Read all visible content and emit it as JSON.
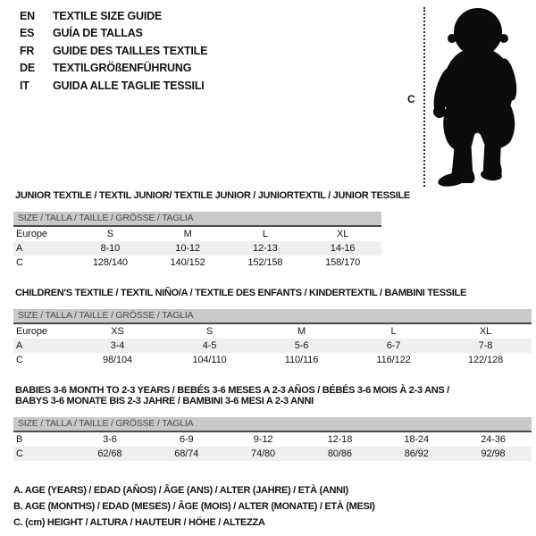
{
  "header": {
    "languages": [
      {
        "code": "EN",
        "title": "TEXTILE SIZE GUIDE"
      },
      {
        "code": "ES",
        "title": "GUÍA DE TALLAS"
      },
      {
        "code": "FR",
        "title": "GUIDE DES TAILLES TEXTILE"
      },
      {
        "code": "DE",
        "title": "TEXTILGRÖßENFÜHRUNG"
      },
      {
        "code": "IT",
        "title": "GUIDA ALLE TAGLIE TESSILI"
      }
    ]
  },
  "figure": {
    "measure_label": "C",
    "silhouette": "standing-toddler-silhouette"
  },
  "tables": [
    {
      "title_lines": [
        "JUNIOR TEXTILE / TEXTIL JUNIOR/ TEXTILE JUNIOR / JUNIORTEXTIL / JUNIOR TESSILE"
      ],
      "size_header": "SIZE / TALLA / TAILLE / GRÖSSE / TAGLIA",
      "rows": [
        {
          "label": "Europe",
          "values": [
            "S",
            "M",
            "L",
            "XL"
          ]
        },
        {
          "label": "A",
          "values": [
            "8-10",
            "10-12",
            "12-13",
            "14-16"
          ]
        },
        {
          "label": "C",
          "values": [
            "128/140",
            "140/152",
            "152/158",
            "158/170"
          ]
        }
      ]
    },
    {
      "title_lines": [
        "CHILDREN'S TEXTILE / TEXTIL NIÑO/A / TEXTILE DES ENFANTS / KINDERTEXTIL / BAMBINI TESSILE"
      ],
      "size_header": "SIZE / TALLA / TAILLE / GRÖSSE / TAGLIA",
      "rows": [
        {
          "label": "Europe",
          "values": [
            "XS",
            "S",
            "M",
            "L",
            "XL"
          ]
        },
        {
          "label": "A",
          "values": [
            "3-4",
            "4-5",
            "5-6",
            "6-7",
            "7-8"
          ]
        },
        {
          "label": "C",
          "values": [
            "98/104",
            "104/110",
            "110/116",
            "116/122",
            "122/128"
          ]
        }
      ]
    },
    {
      "title_lines": [
        "BABIES 3-6 MONTH TO 2-3 YEARS / BEBÉS 3-6 MESES A 2-3 AÑOS / BÉBÉS 3-6 MOIS À 2-3 ANS /",
        "BABYS 3-6 MONATE BIS 2-3 JAHRE / BAMBINI 3-6 MESI A 2-3 ANNI"
      ],
      "size_header": "SIZE / TALLA / TAILLE / GRÖSSE / TAGLIA",
      "rows": [
        {
          "label": "B",
          "values": [
            "3-6",
            "6-9",
            "9-12",
            "12-18",
            "18-24",
            "24-36"
          ]
        },
        {
          "label": "C",
          "values": [
            "62/68",
            "68/74",
            "74/80",
            "80/86",
            "86/92",
            "92/98"
          ]
        }
      ]
    }
  ],
  "notes": [
    "A. AGE (YEARS) / EDAD (AÑOS) / ÂGE (ANS) / ALTER (JAHRE) / ETÀ (ANNI)",
    "B. AGE (MONTHS) / EDAD (MESES) / ÂGE (MOIS) / ALTER (MONATE) / ETÀ (MESI)",
    "C. (cm) HEIGHT / ALTURA / HAUTEUR / HÖHE / ALTEZZA"
  ],
  "colors": {
    "size_bar_bg": "#c9c9c9",
    "size_bar_text": "#4d4d4d",
    "size_bar_border": "#4a4a4a",
    "shaded_row_bg": "#efefef",
    "text": "#141414",
    "silhouette": "#0b0b0b",
    "background": "#ffffff"
  }
}
